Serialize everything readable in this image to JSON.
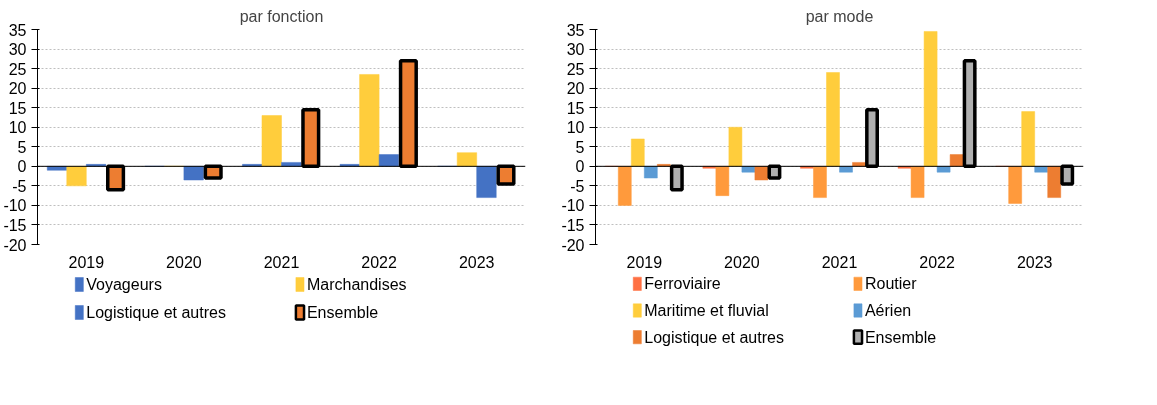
{
  "chart_data": [
    {
      "type": "bar",
      "title": "par fonction",
      "categories": [
        "2019",
        "2020",
        "2021",
        "2022",
        "2023"
      ],
      "ylim": [
        -20,
        35
      ],
      "yticks": [
        -20,
        -15,
        -10,
        -5,
        0,
        5,
        10,
        15,
        20,
        25,
        30,
        35
      ],
      "grid": "y",
      "legend": "bottom",
      "series": [
        {
          "name": "Voyageurs",
          "color": "#4472c4",
          "values": [
            -1,
            0,
            0.5,
            0.5,
            0
          ]
        },
        {
          "name": "Marchandises",
          "color": "#ffcd3c",
          "values": [
            -5,
            0,
            13,
            23.5,
            3.5
          ]
        },
        {
          "name": "Logistique et autres",
          "color": "#4472c4",
          "values": [
            0.5,
            -3.5,
            1,
            3,
            -8
          ]
        },
        {
          "name": "Ensemble",
          "color": "#ed7d31",
          "values": [
            -6,
            -3,
            14.5,
            27,
            -4.5
          ]
        }
      ]
    },
    {
      "type": "bar",
      "title": "par mode",
      "categories": [
        "2019",
        "2020",
        "2021",
        "2022",
        "2023"
      ],
      "ylim": [
        -20,
        35
      ],
      "yticks": [
        -20,
        -15,
        -10,
        -5,
        0,
        5,
        10,
        15,
        20,
        25,
        30,
        35
      ],
      "grid": "y",
      "legend": "bottom",
      "series": [
        {
          "name": "Ferroviaire",
          "color": "#ff7043",
          "values": [
            0,
            -0.5,
            -0.5,
            -0.5,
            0
          ]
        },
        {
          "name": "Routier",
          "color": "#ff9a3c",
          "values": [
            -10,
            -7.5,
            -8,
            -8,
            -9.5
          ]
        },
        {
          "name": "Maritime et fluvial",
          "color": "#ffcd3c",
          "values": [
            7,
            10,
            24,
            34.5,
            14
          ]
        },
        {
          "name": "Aérien",
          "color": "#5b9bd5",
          "values": [
            -3,
            -1.5,
            -1.5,
            -1.5,
            -1.5
          ]
        },
        {
          "name": "Logistique et autres",
          "color": "#ed7d31",
          "values": [
            0.5,
            -3.5,
            1,
            3,
            -8
          ]
        },
        {
          "name": "Ensemble",
          "color": "#b0b0b0",
          "values": [
            -6,
            -3,
            14.5,
            27,
            -4.5
          ]
        }
      ]
    }
  ]
}
